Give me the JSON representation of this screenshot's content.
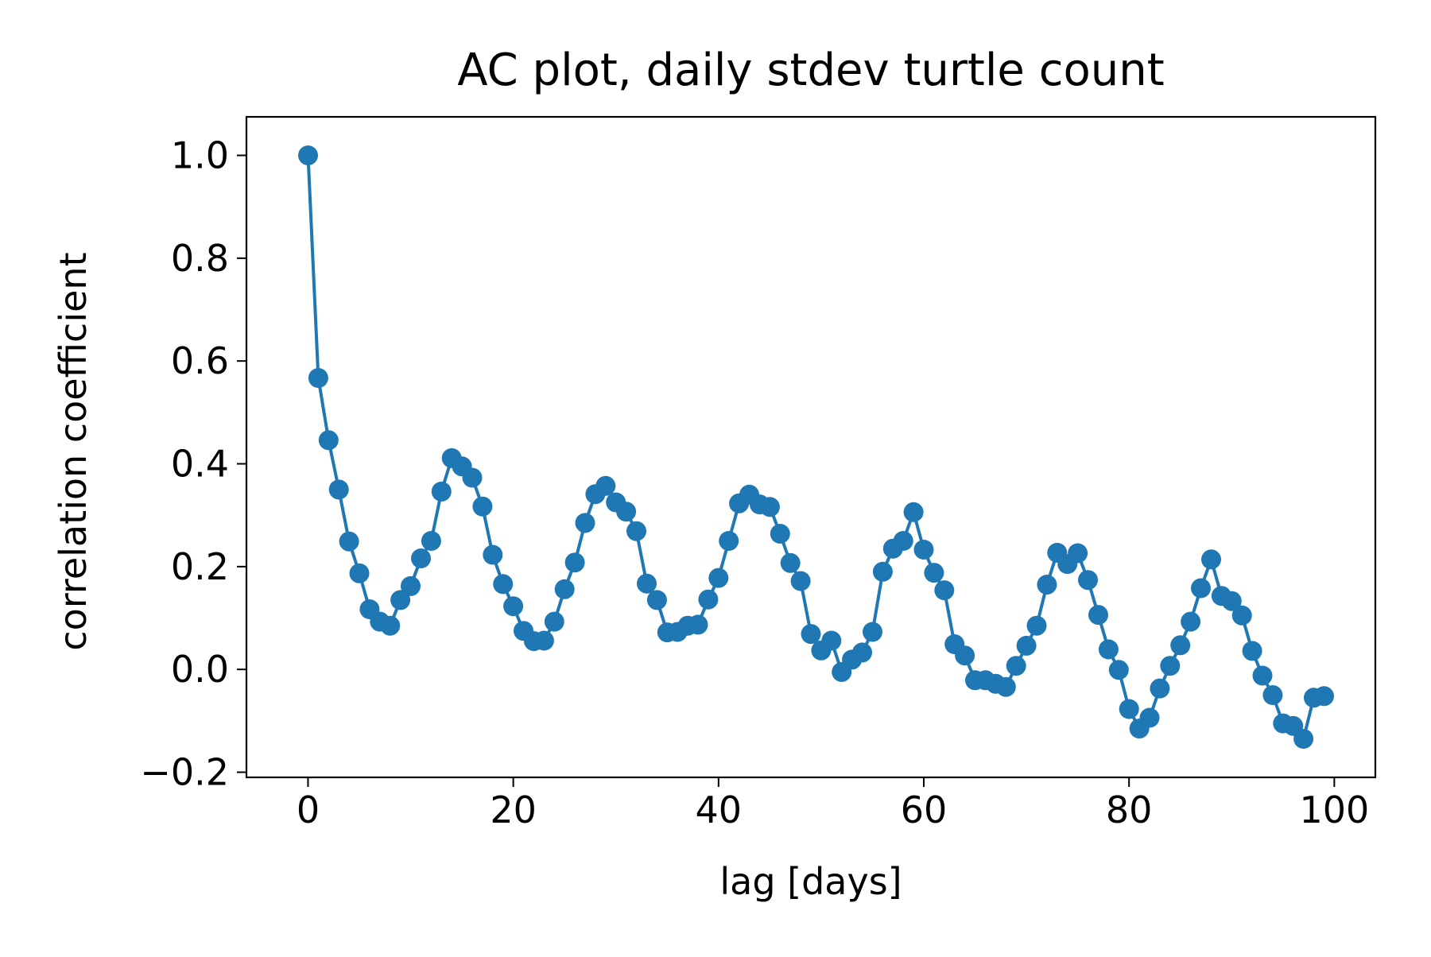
{
  "chart_data": {
    "type": "line",
    "title": "AC plot, daily stdev turtle count",
    "xlabel": "lag [days]",
    "ylabel": "correlation coefficient",
    "xlim": [
      -6,
      104
    ],
    "ylim": [
      -0.21,
      1.075
    ],
    "x_ticks": [
      0,
      20,
      40,
      60,
      80,
      100
    ],
    "y_ticks": [
      -0.2,
      0.0,
      0.2,
      0.4,
      0.6,
      0.8,
      1.0
    ],
    "x_tick_labels": [
      "0",
      "20",
      "40",
      "60",
      "80",
      "100"
    ],
    "y_tick_labels": [
      "−0.2",
      "0.0",
      "0.2",
      "0.4",
      "0.6",
      "0.8",
      "1.0"
    ],
    "grid": false,
    "legend": false,
    "series": [
      {
        "color": "#1f77b4",
        "marker": "circle",
        "x": [
          0,
          1,
          2,
          3,
          4,
          5,
          6,
          7,
          8,
          9,
          10,
          11,
          12,
          13,
          14,
          15,
          16,
          17,
          18,
          19,
          20,
          21,
          22,
          23,
          24,
          25,
          26,
          27,
          28,
          29,
          30,
          31,
          32,
          33,
          34,
          35,
          36,
          37,
          38,
          39,
          40,
          41,
          42,
          43,
          44,
          45,
          46,
          47,
          48,
          49,
          50,
          51,
          52,
          53,
          54,
          55,
          56,
          57,
          58,
          59,
          60,
          61,
          62,
          63,
          64,
          65,
          66,
          67,
          68,
          69,
          70,
          71,
          72,
          73,
          74,
          75,
          76,
          77,
          78,
          79,
          80,
          81,
          82,
          83,
          84,
          85,
          86,
          87,
          88,
          89,
          90,
          91,
          92,
          93,
          94,
          95,
          96,
          97,
          98,
          99
        ],
        "values": [
          1.0,
          0.567,
          0.446,
          0.35,
          0.249,
          0.187,
          0.117,
          0.093,
          0.085,
          0.135,
          0.162,
          0.216,
          0.25,
          0.346,
          0.411,
          0.395,
          0.373,
          0.317,
          0.223,
          0.166,
          0.123,
          0.075,
          0.055,
          0.056,
          0.093,
          0.156,
          0.208,
          0.285,
          0.341,
          0.357,
          0.325,
          0.307,
          0.269,
          0.167,
          0.135,
          0.072,
          0.073,
          0.085,
          0.087,
          0.136,
          0.178,
          0.25,
          0.323,
          0.34,
          0.321,
          0.316,
          0.264,
          0.207,
          0.172,
          0.069,
          0.037,
          0.056,
          -0.005,
          0.019,
          0.033,
          0.073,
          0.19,
          0.235,
          0.25,
          0.306,
          0.233,
          0.188,
          0.154,
          0.049,
          0.027,
          -0.021,
          -0.021,
          -0.028,
          -0.034,
          0.007,
          0.046,
          0.085,
          0.165,
          0.227,
          0.205,
          0.226,
          0.174,
          0.106,
          0.039,
          -0.001,
          -0.077,
          -0.115,
          -0.094,
          -0.037,
          0.007,
          0.047,
          0.093,
          0.158,
          0.214,
          0.143,
          0.133,
          0.105,
          0.036,
          -0.012,
          -0.05,
          -0.105,
          -0.11,
          -0.135,
          -0.055,
          -0.052
        ]
      }
    ]
  }
}
